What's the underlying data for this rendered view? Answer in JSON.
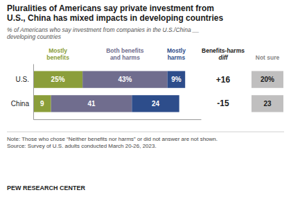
{
  "chart_data": {
    "type": "bar",
    "orientation": "horizontal",
    "stacked": true,
    "data_labels": true,
    "tick_labels": "y",
    "title": "Pluralities of Americans say private investment from\nU.S., China has mixed impacts in developing countries",
    "subtitle": "% of Americans who say investment from companies in the U.S./China __\ndeveloping countries",
    "categories": [
      "U.S.",
      "China"
    ],
    "series": [
      {
        "name": "Mostly\nbenefits",
        "color": "#8b9e3a",
        "values": [
          25,
          9
        ],
        "value_labels": [
          "25%",
          "9"
        ]
      },
      {
        "name": "Both benefits\nand harms",
        "color": "#706d8e",
        "values": [
          43,
          41
        ],
        "value_labels": [
          "43%",
          "41"
        ]
      },
      {
        "name": "Mostly\nharms",
        "color": "#2d4d8b",
        "values": [
          9,
          24
        ],
        "value_labels": [
          "9%",
          "24"
        ]
      }
    ],
    "xlim": [
      0,
      85
    ],
    "diff": {
      "title": "Benefits-harms\ndiff",
      "values": [
        16,
        -15
      ],
      "value_labels": [
        "+16",
        "-15"
      ]
    },
    "not_sure": {
      "title": "Not sure",
      "color": "#c0bfbf",
      "values": [
        20,
        23
      ],
      "value_labels": [
        "20%",
        "23"
      ]
    },
    "note": "Note: Those who chose “Neither benefits nor harms” or did not answer are not shown.\nSource: Survey of U.S. adults conducted March 20-26, 2023.",
    "footer": "PEW RESEARCH CENTER"
  }
}
